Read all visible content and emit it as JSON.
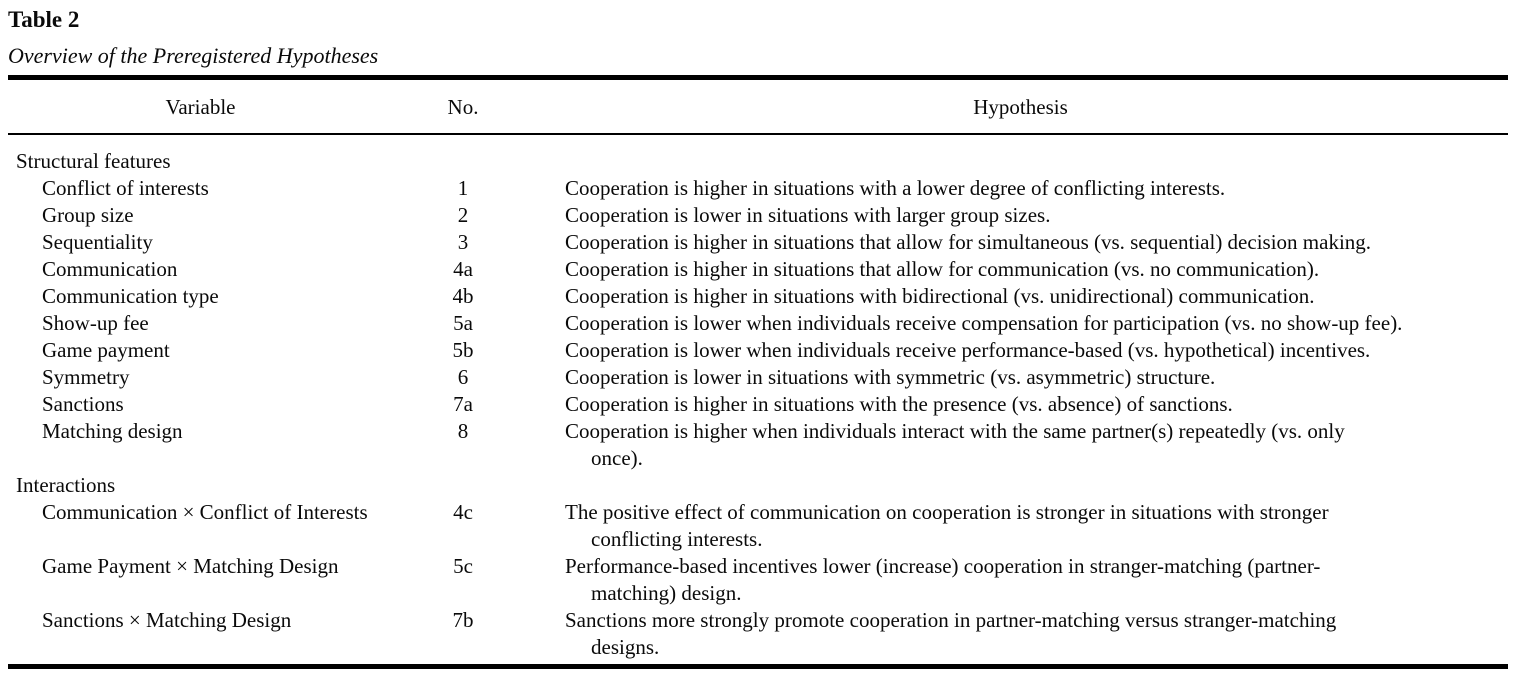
{
  "title": "Table 2",
  "subtitle": "Overview of the Preregistered Hypotheses",
  "columns": {
    "variable": "Variable",
    "no": "No.",
    "hypothesis": "Hypothesis"
  },
  "sections": [
    {
      "label": "Structural features",
      "rows": [
        {
          "variable": "Conflict of interests",
          "no": "1",
          "hypothesis": "Cooperation is higher in situations with a lower degree of conflicting interests."
        },
        {
          "variable": "Group size",
          "no": "2",
          "hypothesis": "Cooperation is lower in situations with larger group sizes."
        },
        {
          "variable": "Sequentiality",
          "no": "3",
          "hypothesis": "Cooperation is higher in situations that allow for simultaneous (vs. sequential) decision making."
        },
        {
          "variable": "Communication",
          "no": "4a",
          "hypothesis": "Cooperation is higher in situations that allow for communication (vs. no communication)."
        },
        {
          "variable": "Communication type",
          "no": "4b",
          "hypothesis": "Cooperation is higher in situations with bidirectional (vs. unidirectional) communication."
        },
        {
          "variable": "Show-up fee",
          "no": "5a",
          "hypothesis": "Cooperation is lower when individuals receive compensation for participation (vs. no show-up fee)."
        },
        {
          "variable": "Game payment",
          "no": "5b",
          "hypothesis": "Cooperation is lower when individuals receive performance-based (vs. hypothetical) incentives."
        },
        {
          "variable": "Symmetry",
          "no": "6",
          "hypothesis": "Cooperation is lower in situations with symmetric (vs. asymmetric) structure."
        },
        {
          "variable": "Sanctions",
          "no": "7a",
          "hypothesis": "Cooperation is higher in situations with the presence (vs. absence) of sanctions."
        },
        {
          "variable": "Matching design",
          "no": "8",
          "hypothesis": "Cooperation is higher when individuals interact with the same partner(s) repeatedly (vs. only\nonce)."
        }
      ]
    },
    {
      "label": "Interactions",
      "rows": [
        {
          "variable": "Communication × Conflict of Interests",
          "no": "4c",
          "hypothesis": "The positive effect of communication on cooperation is stronger in situations with stronger\nconflicting interests."
        },
        {
          "variable": "Game Payment × Matching Design",
          "no": "5c",
          "hypothesis": "Performance-based incentives lower (increase) cooperation in stranger-matching (partner-\nmatching) design."
        },
        {
          "variable": "Sanctions × Matching Design",
          "no": "7b",
          "hypothesis": "Sanctions more strongly promote cooperation in partner-matching versus stranger-matching\ndesigns."
        }
      ]
    }
  ],
  "colors": {
    "text": "#0a0a0a",
    "rule": "#000000",
    "background": "#ffffff"
  }
}
